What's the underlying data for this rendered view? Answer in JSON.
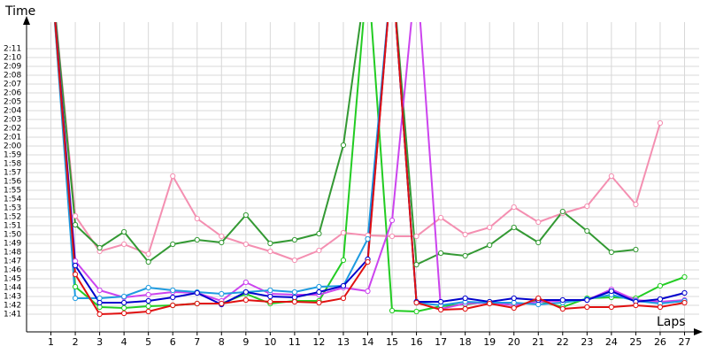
{
  "chart_data": {
    "type": "line",
    "y_label": "Time",
    "x_label": "Laps",
    "x": [
      1,
      2,
      3,
      4,
      5,
      6,
      7,
      8,
      9,
      10,
      11,
      12,
      13,
      14,
      15,
      16,
      17,
      18,
      19,
      20,
      21,
      22,
      23,
      24,
      25,
      26,
      27
    ],
    "xlim": [
      0,
      27.6
    ],
    "xticks": [
      1,
      2,
      3,
      4,
      5,
      6,
      7,
      8,
      9,
      10,
      11,
      12,
      13,
      14,
      15,
      16,
      17,
      18,
      19,
      20,
      21,
      22,
      23,
      24,
      25,
      26,
      27
    ],
    "ylim": [
      99,
      134
    ],
    "yticks": [
      {
        "value": 101,
        "label": "1:41"
      },
      {
        "value": 102,
        "label": "1:42"
      },
      {
        "value": 103,
        "label": "1:43"
      },
      {
        "value": 104,
        "label": "1:44"
      },
      {
        "value": 105,
        "label": "1:45"
      },
      {
        "value": 106,
        "label": "1:46"
      },
      {
        "value": 107,
        "label": "1:47"
      },
      {
        "value": 108,
        "label": "1:48"
      },
      {
        "value": 109,
        "label": "1:49"
      },
      {
        "value": 110,
        "label": "1:50"
      },
      {
        "value": 111,
        "label": "1:51"
      },
      {
        "value": 112,
        "label": "1:52"
      },
      {
        "value": 113,
        "label": "1:53"
      },
      {
        "value": 114,
        "label": "1:54"
      },
      {
        "value": 115,
        "label": "1:55"
      },
      {
        "value": 116,
        "label": "1:56"
      },
      {
        "value": 117,
        "label": "1:57"
      },
      {
        "value": 118,
        "label": "1:58"
      },
      {
        "value": 119,
        "label": "1:59"
      },
      {
        "value": 120,
        "label": "2:00"
      },
      {
        "value": 121,
        "label": "2:01"
      },
      {
        "value": 122,
        "label": "2:02"
      },
      {
        "value": 123,
        "label": "2:03"
      },
      {
        "value": 124,
        "label": "2:04"
      },
      {
        "value": 125,
        "label": "2:05"
      },
      {
        "value": 126,
        "label": "2:06"
      },
      {
        "value": 127,
        "label": "2:07"
      },
      {
        "value": 128,
        "label": "2:08"
      },
      {
        "value": 129,
        "label": "2:09"
      },
      {
        "value": 130,
        "label": "2:10"
      },
      {
        "value": 131,
        "label": "2:11"
      }
    ],
    "grid": true,
    "series": [
      {
        "color": "#f48fb1",
        "values": [
          140,
          112.1,
          108.1,
          108.9,
          107.8,
          116.6,
          111.8,
          109.8,
          108.9,
          108.1,
          107.1,
          108.2,
          110.2,
          109.9,
          109.8,
          109.8,
          111.9,
          110,
          110.8,
          113.1,
          111.4,
          112.4,
          113.2,
          116.6,
          113.4,
          122.6,
          null
        ]
      },
      {
        "color": "#339933",
        "values": [
          140,
          111.1,
          108.5,
          110.3,
          106.9,
          108.9,
          109.4,
          109.1,
          112.2,
          109,
          109.4,
          110.1,
          120.1,
          140,
          140,
          106.6,
          107.9,
          107.6,
          108.8,
          110.8,
          109.1,
          112.6,
          110.4,
          108,
          108.3,
          null,
          null
        ]
      },
      {
        "color": "#22cc22",
        "values": [
          140,
          104.1,
          101.8,
          101.7,
          101.9,
          102,
          102.2,
          102.2,
          103.3,
          102.2,
          102.5,
          102.5,
          107.1,
          140,
          101.4,
          101.3,
          101.9,
          102.1,
          102.4,
          102,
          102.5,
          101.8,
          102.8,
          102.9,
          102.8,
          104.2,
          105.2
        ]
      },
      {
        "color": "#cc44ee",
        "values": [
          140,
          107,
          103.7,
          102.9,
          103.2,
          103.5,
          103.4,
          102.5,
          104.6,
          103.3,
          103.2,
          103.2,
          104,
          103.6,
          111.6,
          140,
          101.6,
          102.2,
          102.3,
          102,
          102.4,
          102.5,
          102.6,
          103.8,
          102.6,
          102.4,
          102.6
        ]
      },
      {
        "color": "#1e9be0",
        "values": [
          140,
          102.8,
          102.8,
          103,
          104,
          103.7,
          103.5,
          103.3,
          103.5,
          103.7,
          103.5,
          104.1,
          104.2,
          109.5,
          140,
          102.3,
          102,
          102.4,
          102.3,
          102.3,
          102.1,
          102.3,
          102.7,
          103.2,
          102.5,
          102.2,
          102.5
        ]
      },
      {
        "color": "#0000cc",
        "values": [
          140,
          106.5,
          102.3,
          102.3,
          102.5,
          102.9,
          103.4,
          102.1,
          103.5,
          103,
          102.9,
          103.5,
          104.2,
          107.2,
          140,
          102.4,
          102.4,
          102.8,
          102.4,
          102.8,
          102.6,
          102.6,
          102.6,
          103.6,
          102.4,
          102.7,
          103.4
        ]
      },
      {
        "color": "#e01010",
        "values": [
          140,
          105.5,
          101,
          101.1,
          101.3,
          102,
          102.2,
          102.2,
          102.6,
          102.4,
          102.4,
          102.3,
          102.8,
          106.9,
          140,
          102.3,
          101.5,
          101.6,
          102.2,
          101.7,
          102.8,
          101.6,
          101.8,
          101.8,
          102,
          101.8,
          102.3
        ]
      }
    ]
  }
}
